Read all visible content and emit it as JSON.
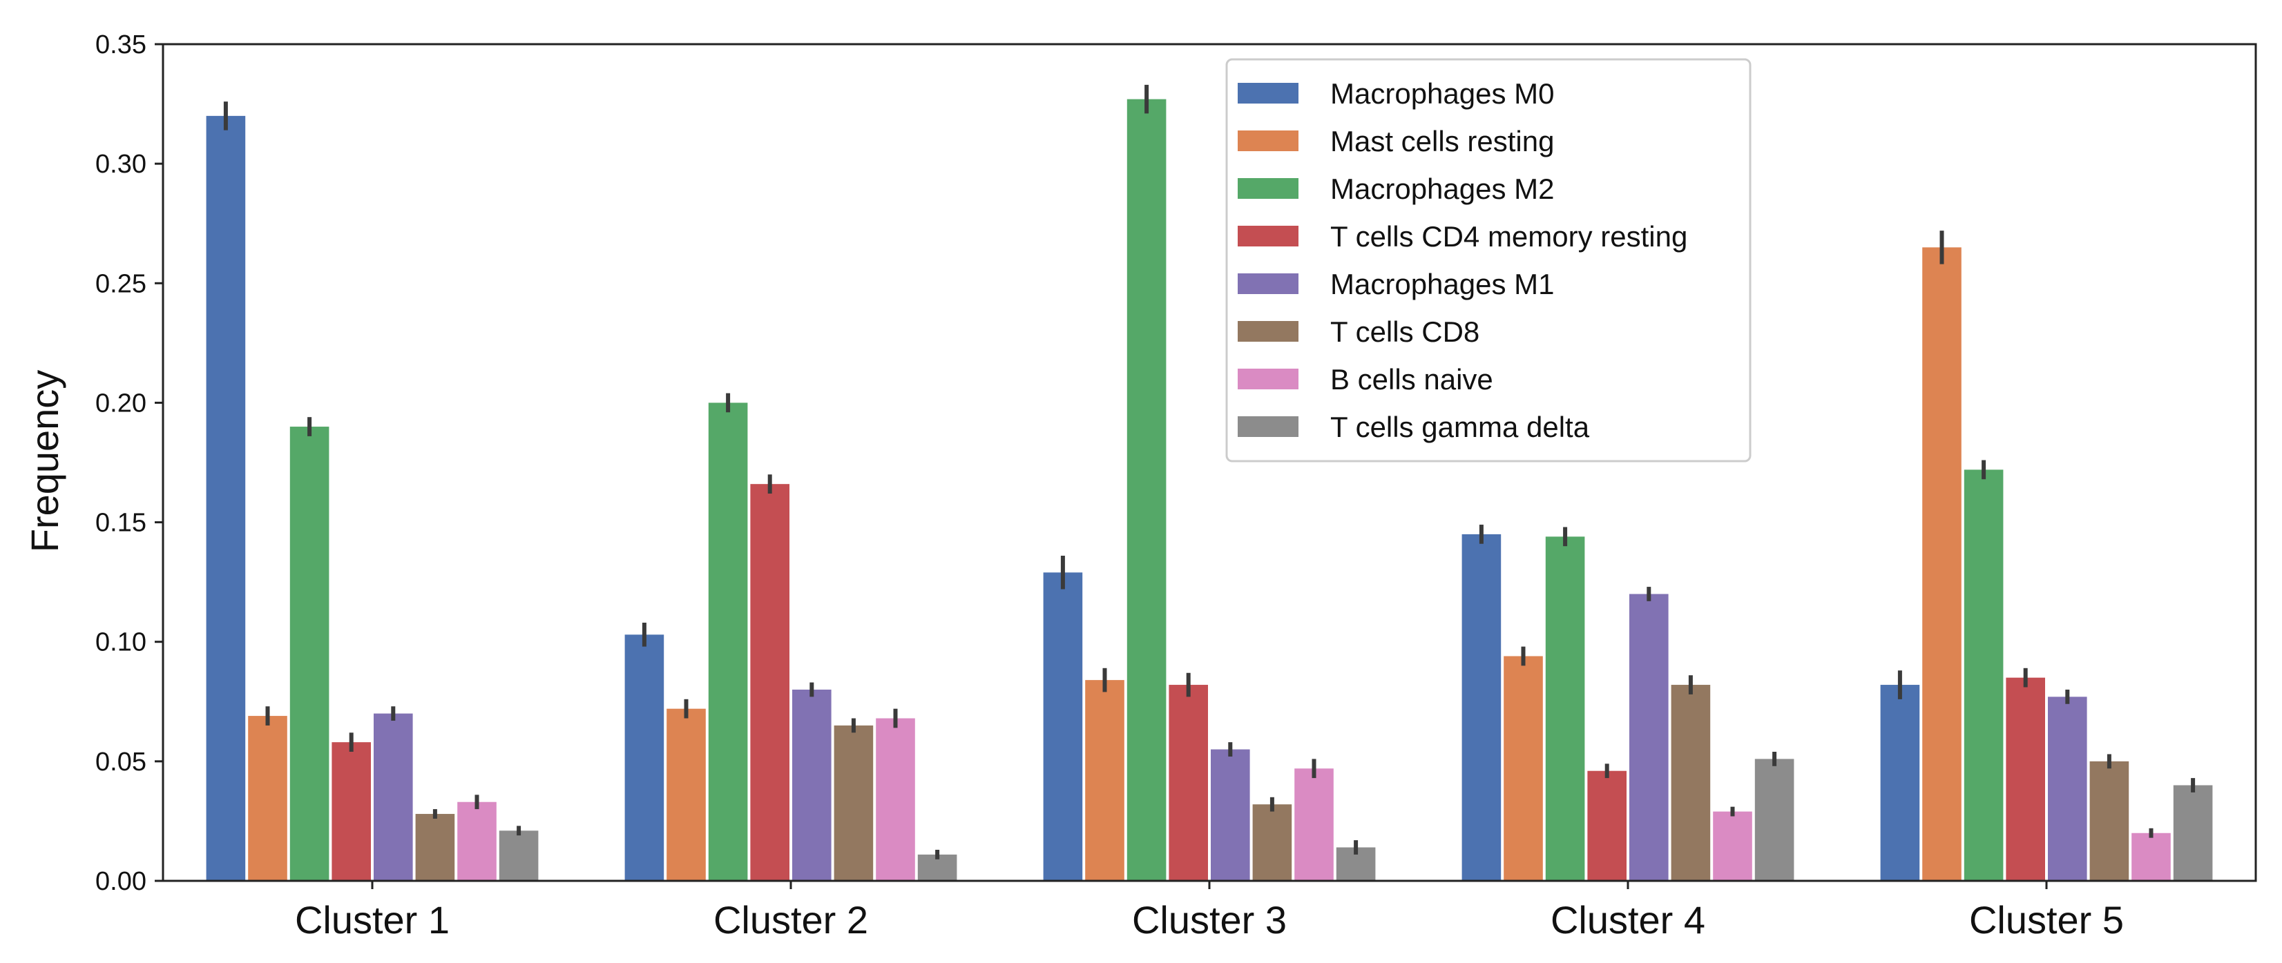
{
  "chart_data": {
    "type": "bar",
    "title": "",
    "xlabel": "",
    "ylabel": "Frequency",
    "ylim": [
      0,
      0.35
    ],
    "yticks": [
      "0.00",
      "0.05",
      "0.10",
      "0.15",
      "0.20",
      "0.25",
      "0.30",
      "0.35"
    ],
    "grid": false,
    "legend_position": "top-center",
    "categories": [
      "Cluster 1",
      "Cluster 2",
      "Cluster 3",
      "Cluster 4",
      "Cluster 5"
    ],
    "series": [
      {
        "name": "Macrophages M0",
        "color": "#4c72b0",
        "values": [
          0.32,
          0.103,
          0.129,
          0.145,
          0.082
        ],
        "errors": [
          0.006,
          0.005,
          0.007,
          0.004,
          0.006
        ]
      },
      {
        "name": "Mast cells resting",
        "color": "#dd8452",
        "values": [
          0.069,
          0.072,
          0.084,
          0.094,
          0.265
        ],
        "errors": [
          0.004,
          0.004,
          0.005,
          0.004,
          0.007
        ]
      },
      {
        "name": "Macrophages M2",
        "color": "#55a868",
        "values": [
          0.19,
          0.2,
          0.327,
          0.144,
          0.172
        ],
        "errors": [
          0.004,
          0.004,
          0.006,
          0.004,
          0.004
        ]
      },
      {
        "name": "T cells CD4 memory resting",
        "color": "#c44e52",
        "values": [
          0.058,
          0.166,
          0.082,
          0.046,
          0.085
        ],
        "errors": [
          0.004,
          0.004,
          0.005,
          0.003,
          0.004
        ]
      },
      {
        "name": "Macrophages M1",
        "color": "#8172b3",
        "values": [
          0.07,
          0.08,
          0.055,
          0.12,
          0.077
        ],
        "errors": [
          0.003,
          0.003,
          0.003,
          0.003,
          0.003
        ]
      },
      {
        "name": "T cells CD8",
        "color": "#937860",
        "values": [
          0.028,
          0.065,
          0.032,
          0.082,
          0.05
        ],
        "errors": [
          0.002,
          0.003,
          0.003,
          0.004,
          0.003
        ]
      },
      {
        "name": "B cells naive",
        "color": "#da8bc3",
        "values": [
          0.033,
          0.068,
          0.047,
          0.029,
          0.02
        ],
        "errors": [
          0.003,
          0.004,
          0.004,
          0.002,
          0.002
        ]
      },
      {
        "name": "T cells gamma delta",
        "color": "#8c8c8c",
        "values": [
          0.021,
          0.011,
          0.014,
          0.051,
          0.04
        ],
        "errors": [
          0.002,
          0.002,
          0.003,
          0.003,
          0.003
        ]
      }
    ]
  }
}
